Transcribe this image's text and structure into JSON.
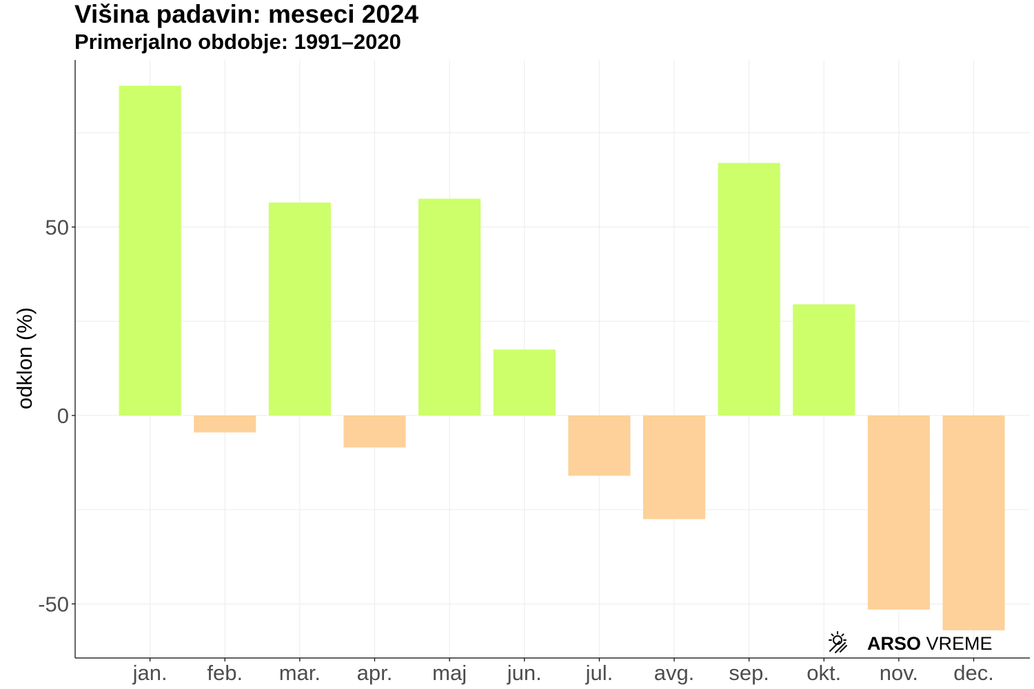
{
  "title": "Višina padavin: meseci 2024",
  "subtitle": "Primerjalno obdobje: 1991–2020",
  "brand": {
    "strong": "ARSO",
    "light": " VREME",
    "icon": "sun-rain-icon"
  },
  "colors": {
    "positive": "#CCFF6A",
    "negative": "#FDD199",
    "grid": "#EBEBEB",
    "axis": "#000000"
  },
  "chart_data": {
    "type": "bar",
    "categories": [
      "jan.",
      "feb.",
      "mar.",
      "apr.",
      "maj",
      "jun.",
      "jul.",
      "avg.",
      "sep.",
      "okt.",
      "nov.",
      "dec."
    ],
    "values": [
      87.5,
      -4.5,
      56.5,
      -8.5,
      57.5,
      17.5,
      -16,
      -27.5,
      67,
      29.5,
      -51.5,
      -57
    ],
    "ylabel": "odklon (%)",
    "yticks": [
      -50,
      0,
      50
    ],
    "ylim": [
      -64,
      94
    ],
    "grid": true,
    "legend": "none"
  }
}
